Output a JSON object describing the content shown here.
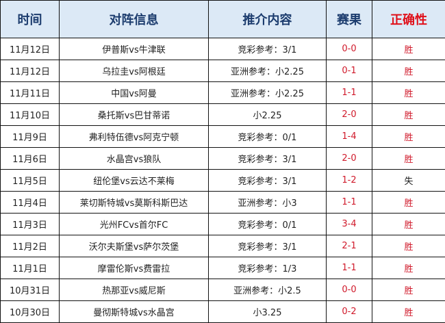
{
  "headers": {
    "date": "时间",
    "match": "对阵信息",
    "tip": "推介内容",
    "score": "赛果",
    "correct": "正确性"
  },
  "colors": {
    "header_bg": "#dce9f6",
    "header_text": "#1c3c6e",
    "accent_red": "#e0101a"
  },
  "rows": [
    {
      "date": "11月12日",
      "match": "伊普斯vs牛津联",
      "tip": "竞彩参考：3/1",
      "score": "0-0",
      "result": "胜"
    },
    {
      "date": "11月12日",
      "match": "乌拉圭vs阿根廷",
      "tip": "亚洲参考：小2.25",
      "score": "0-1",
      "result": "胜"
    },
    {
      "date": "11月11日",
      "match": "中国vs阿曼",
      "tip": "亚洲参考：小2.25",
      "score": "1-1",
      "result": "胜"
    },
    {
      "date": "11月10日",
      "match": "桑托斯vs巴甘蒂诺",
      "tip": "小2.25",
      "score": "2-0",
      "result": "胜"
    },
    {
      "date": "11月9日",
      "match": "弗利特伍德vs阿克宁顿",
      "tip": "竞彩参考：0/1",
      "score": "1-4",
      "result": "胜"
    },
    {
      "date": "11月6日",
      "match": "水晶宫vs狼队",
      "tip": "竞彩参考：3/1",
      "score": "2-0",
      "result": "胜"
    },
    {
      "date": "11月5日",
      "match": "纽伦堡vs云达不莱梅",
      "tip": "竞彩参考：3/1",
      "score": "1-2",
      "result": "失"
    },
    {
      "date": "11月4日",
      "match": "莱切斯特城vs莫斯科斯巴达",
      "tip": "亚洲参考：小3",
      "score": "1-1",
      "result": "胜"
    },
    {
      "date": "11月3日",
      "match": "光州FCvs首尔FC",
      "tip": "竞彩参考：0/1",
      "score": "3-4",
      "result": "胜"
    },
    {
      "date": "11月2日",
      "match": "沃尔夫斯堡vs萨尔茨堡",
      "tip": "竞彩参考：3/1",
      "score": "2-1",
      "result": "胜"
    },
    {
      "date": "11月1日",
      "match": "摩雷伦斯vs费雷拉",
      "tip": "竞彩参考：1/3",
      "score": "1-1",
      "result": "胜"
    },
    {
      "date": "10月31日",
      "match": "热那亚vs威尼斯",
      "tip": "亚洲参考：小2.5",
      "score": "0-0",
      "result": "胜"
    },
    {
      "date": "10月30日",
      "match": "曼彻斯特城vs水晶宫",
      "tip": "小3.25",
      "score": "0-2",
      "result": "胜"
    }
  ]
}
